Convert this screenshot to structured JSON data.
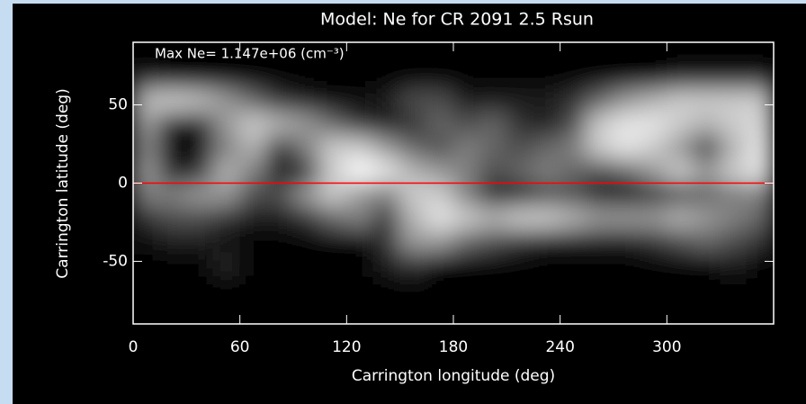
{
  "chart_data": {
    "type": "heatmap",
    "title": "Model: Ne for CR 2091 2.5 Rsun",
    "annotation": "Max Ne= 1.147e+06 (cm⁻³)",
    "x_label": "Carrington longitude (deg)",
    "y_label": "Carrington latitude (deg)",
    "xlim": [
      0,
      360
    ],
    "ylim": [
      -90,
      90
    ],
    "xticks": [
      0,
      60,
      120,
      180,
      240,
      300
    ],
    "yticks": [
      -50,
      0,
      50
    ],
    "reference_line_y": 0,
    "reference_line_color": "#ff0000",
    "x": [
      7.5,
      22.5,
      37.5,
      52.5,
      67.5,
      82.5,
      97.5,
      112.5,
      127.5,
      142.5,
      157.5,
      172.5,
      187.5,
      202.5,
      217.5,
      232.5,
      247.5,
      262.5,
      277.5,
      292.5,
      307.5,
      322.5,
      337.5,
      352.5
    ],
    "y": [
      82.5,
      67.5,
      52.5,
      37.5,
      22.5,
      7.5,
      -7.5,
      -22.5,
      -37.5,
      -52.5,
      -67.5,
      -82.5
    ],
    "z": [
      [
        0,
        0,
        0,
        0,
        0,
        0,
        0,
        0,
        0,
        0,
        0,
        0,
        0,
        0,
        0,
        0,
        0,
        0,
        0,
        0,
        0,
        0,
        0,
        0
      ],
      [
        0.1,
        0,
        0,
        0,
        0,
        0,
        0,
        0,
        0,
        0,
        0,
        0,
        0,
        0,
        0,
        0,
        0,
        0,
        0,
        0,
        0.1,
        0.1,
        0.1,
        0.1
      ],
      [
        0.75,
        0.8,
        0.75,
        0.6,
        0.4,
        0.2,
        0.1,
        0.05,
        0.05,
        0.1,
        0.3,
        0.3,
        0.1,
        0.1,
        0.1,
        0.1,
        0.2,
        0.4,
        0.6,
        0.7,
        0.8,
        0.8,
        0.8,
        0.8
      ],
      [
        0.6,
        0.1,
        0.1,
        0.6,
        0.8,
        0.7,
        0.6,
        0.4,
        0.2,
        0.1,
        0.2,
        0.4,
        0.3,
        0.4,
        0.2,
        0.1,
        0.3,
        0.8,
        0.9,
        0.9,
        0.8,
        0.7,
        0.8,
        0.85
      ],
      [
        0.5,
        0,
        0.05,
        0.5,
        0.7,
        0.2,
        0.5,
        0.8,
        0.8,
        0.6,
        0.4,
        0.3,
        0.5,
        0.4,
        0.3,
        0.4,
        0.5,
        0.8,
        0.9,
        0.8,
        0.6,
        0.2,
        0.7,
        0.9
      ],
      [
        0.6,
        0.1,
        0.2,
        0.7,
        0.5,
        0.05,
        0.2,
        0.8,
        1,
        0.9,
        0.7,
        0.6,
        0.5,
        0.3,
        0.4,
        0.5,
        0.4,
        0.3,
        0.4,
        0.6,
        0.8,
        0.6,
        0.8,
        0.9
      ],
      [
        0.5,
        0.5,
        0.6,
        0.6,
        0.3,
        0.3,
        0.6,
        0.8,
        0.6,
        0.5,
        0.8,
        0.8,
        0.5,
        0.1,
        0.1,
        0.3,
        0.3,
        0.1,
        0.05,
        0.2,
        0.3,
        0.4,
        0.5,
        0.5
      ],
      [
        0.2,
        0.3,
        0.3,
        0.2,
        0.1,
        0.1,
        0.2,
        0.4,
        0.5,
        0.2,
        0.7,
        0.9,
        0.8,
        0.7,
        0.8,
        0.8,
        0.7,
        0.6,
        0.6,
        0.6,
        0.7,
        0.6,
        0.5,
        0.4
      ],
      [
        0.05,
        0.1,
        0.1,
        0.05,
        0,
        0,
        0,
        0,
        0,
        0.2,
        0.6,
        0.6,
        0.4,
        0.3,
        0.2,
        0.1,
        0.1,
        0.1,
        0.1,
        0.2,
        0.3,
        0.4,
        0.3,
        0.2
      ],
      [
        0,
        0,
        0,
        0.15,
        0,
        0,
        0,
        0,
        0,
        0.1,
        0.2,
        0,
        0,
        0,
        0,
        0,
        0,
        0,
        0,
        0,
        0,
        0,
        0.1,
        0
      ],
      [
        0,
        0,
        0,
        0,
        0,
        0,
        0,
        0,
        0,
        0,
        0,
        0,
        0,
        0,
        0,
        0,
        0,
        0,
        0,
        0,
        0,
        0,
        0,
        0
      ],
      [
        0,
        0,
        0,
        0,
        0,
        0,
        0,
        0,
        0,
        0,
        0,
        0,
        0,
        0,
        0,
        0,
        0,
        0,
        0,
        0,
        0,
        0,
        0,
        0
      ]
    ]
  }
}
